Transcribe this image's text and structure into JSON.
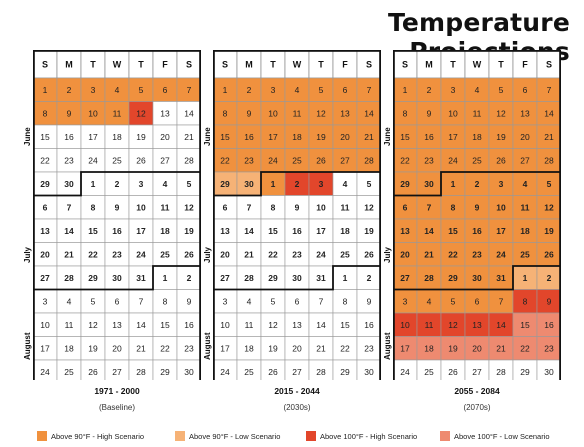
{
  "title": "Temperature Projections",
  "day_headers": [
    "S",
    "M",
    "T",
    "W",
    "T",
    "F",
    "S"
  ],
  "month_labels": [
    "June",
    "July",
    "August"
  ],
  "colors": {
    "high90": "#F0913E",
    "low90": "#F6B276",
    "high100": "#E2462B",
    "low100": "#EE8A70",
    "none": "#FFFFFF"
  },
  "legend": [
    {
      "key": "high90",
      "label": "Above 90°F - High Scenario"
    },
    {
      "key": "low90",
      "label": "Above 90°F - Low Scenario"
    },
    {
      "key": "high100",
      "label": "Above 100°F - High Scenario"
    },
    {
      "key": "low100",
      "label": "Above 100°F - Low Scenario"
    }
  ],
  "chart_data": {
    "type": "heatmap",
    "title": "Temperature Projections",
    "rows": [
      [
        "1",
        "2",
        "3",
        "4",
        "5",
        "6",
        "7"
      ],
      [
        "8",
        "9",
        "10",
        "11",
        "12",
        "13",
        "14"
      ],
      [
        "15",
        "16",
        "17",
        "18",
        "19",
        "20",
        "21"
      ],
      [
        "22",
        "23",
        "24",
        "25",
        "26",
        "27",
        "28"
      ],
      [
        "29",
        "30",
        "1",
        "2",
        "3",
        "4",
        "5"
      ],
      [
        "6",
        "7",
        "8",
        "9",
        "10",
        "11",
        "12"
      ],
      [
        "13",
        "14",
        "15",
        "16",
        "17",
        "18",
        "19"
      ],
      [
        "20",
        "21",
        "22",
        "23",
        "24",
        "25",
        "26"
      ],
      [
        "27",
        "28",
        "29",
        "30",
        "31",
        "1",
        "2"
      ],
      [
        "3",
        "4",
        "5",
        "6",
        "7",
        "8",
        "9"
      ],
      [
        "10",
        "11",
        "12",
        "13",
        "14",
        "15",
        "16"
      ],
      [
        "17",
        "18",
        "19",
        "20",
        "21",
        "22",
        "23"
      ],
      [
        "24",
        "25",
        "26",
        "27",
        "28",
        "29",
        "30"
      ]
    ],
    "bold_rows": [
      4,
      5,
      6,
      7,
      8
    ],
    "panels": [
      {
        "period": "1971 - 2000",
        "label": "(Baseline)",
        "cells": [
          [
            "high90",
            "high90",
            "high90",
            "high90",
            "high90",
            "high90",
            "high90"
          ],
          [
            "high90",
            "high90",
            "high90",
            "high90",
            "high100",
            "none",
            "none"
          ],
          [
            "none",
            "none",
            "none",
            "none",
            "none",
            "none",
            "none"
          ],
          [
            "none",
            "none",
            "none",
            "none",
            "none",
            "none",
            "none"
          ],
          [
            "none",
            "none",
            "none",
            "none",
            "none",
            "none",
            "none"
          ],
          [
            "none",
            "none",
            "none",
            "none",
            "none",
            "none",
            "none"
          ],
          [
            "none",
            "none",
            "none",
            "none",
            "none",
            "none",
            "none"
          ],
          [
            "none",
            "none",
            "none",
            "none",
            "none",
            "none",
            "none"
          ],
          [
            "none",
            "none",
            "none",
            "none",
            "none",
            "none",
            "none"
          ],
          [
            "none",
            "none",
            "none",
            "none",
            "none",
            "none",
            "none"
          ],
          [
            "none",
            "none",
            "none",
            "none",
            "none",
            "none",
            "none"
          ],
          [
            "none",
            "none",
            "none",
            "none",
            "none",
            "none",
            "none"
          ],
          [
            "none",
            "none",
            "none",
            "none",
            "none",
            "none",
            "none"
          ]
        ]
      },
      {
        "period": "2015 - 2044",
        "label": "(2030s)",
        "cells": [
          [
            "high90",
            "high90",
            "high90",
            "high90",
            "high90",
            "high90",
            "high90"
          ],
          [
            "high90",
            "high90",
            "high90",
            "high90",
            "high90",
            "high90",
            "high90"
          ],
          [
            "high90",
            "high90",
            "high90",
            "high90",
            "high90",
            "high90",
            "high90"
          ],
          [
            "high90",
            "high90",
            "high90",
            "high90",
            "high90",
            "high90",
            "high90"
          ],
          [
            "low90",
            "low90",
            "high90",
            "high100",
            "high100",
            "none",
            "none"
          ],
          [
            "none",
            "none",
            "none",
            "none",
            "none",
            "none",
            "none"
          ],
          [
            "none",
            "none",
            "none",
            "none",
            "none",
            "none",
            "none"
          ],
          [
            "none",
            "none",
            "none",
            "none",
            "none",
            "none",
            "none"
          ],
          [
            "none",
            "none",
            "none",
            "none",
            "none",
            "none",
            "none"
          ],
          [
            "none",
            "none",
            "none",
            "none",
            "none",
            "none",
            "none"
          ],
          [
            "none",
            "none",
            "none",
            "none",
            "none",
            "none",
            "none"
          ],
          [
            "none",
            "none",
            "none",
            "none",
            "none",
            "none",
            "none"
          ],
          [
            "none",
            "none",
            "none",
            "none",
            "none",
            "none",
            "none"
          ]
        ]
      },
      {
        "period": "2055 - 2084",
        "label": "(2070s)",
        "cells": [
          [
            "high90",
            "high90",
            "high90",
            "high90",
            "high90",
            "high90",
            "high90"
          ],
          [
            "high90",
            "high90",
            "high90",
            "high90",
            "high90",
            "high90",
            "high90"
          ],
          [
            "high90",
            "high90",
            "high90",
            "high90",
            "high90",
            "high90",
            "high90"
          ],
          [
            "high90",
            "high90",
            "high90",
            "high90",
            "high90",
            "high90",
            "high90"
          ],
          [
            "high90",
            "high90",
            "high90",
            "high90",
            "high90",
            "high90",
            "high90"
          ],
          [
            "high90",
            "high90",
            "high90",
            "high90",
            "high90",
            "high90",
            "high90"
          ],
          [
            "high90",
            "high90",
            "high90",
            "high90",
            "high90",
            "high90",
            "high90"
          ],
          [
            "high90",
            "high90",
            "high90",
            "high90",
            "high90",
            "high90",
            "high90"
          ],
          [
            "high90",
            "high90",
            "high90",
            "high90",
            "high90",
            "low90",
            "low90"
          ],
          [
            "high90",
            "high90",
            "high90",
            "high90",
            "high90",
            "high100",
            "high100"
          ],
          [
            "high100",
            "high100",
            "high100",
            "high100",
            "high100",
            "low100",
            "low100"
          ],
          [
            "low100",
            "low100",
            "low100",
            "low100",
            "low100",
            "low100",
            "low100"
          ],
          [
            "none",
            "none",
            "none",
            "none",
            "none",
            "none",
            "none"
          ]
        ]
      }
    ]
  }
}
